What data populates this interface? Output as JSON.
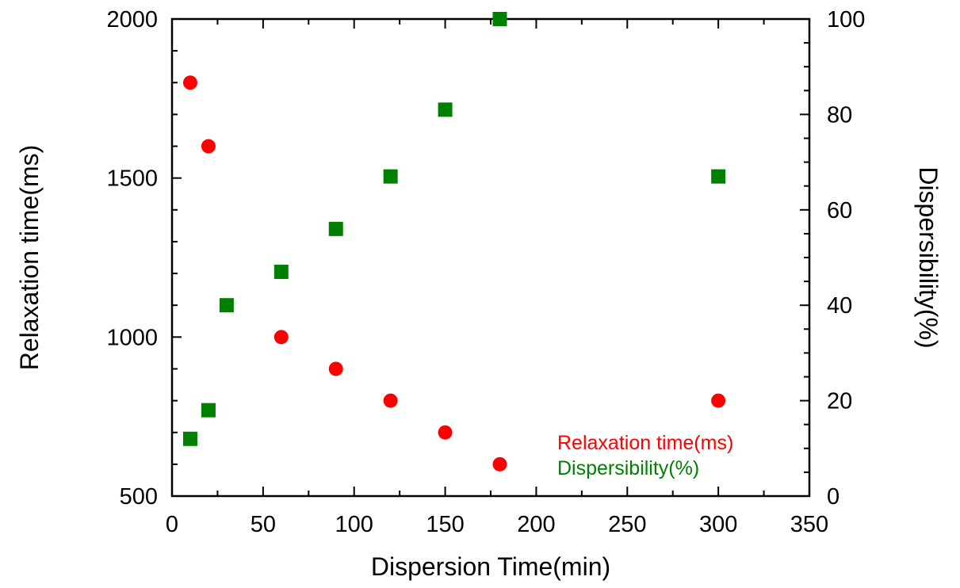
{
  "chart_data": {
    "type": "scatter",
    "x_axis": {
      "label": "Dispersion Time(min)",
      "range": [
        0,
        350
      ],
      "ticks": [
        0,
        50,
        100,
        150,
        200,
        250,
        300,
        350
      ],
      "tick_labels": [
        "0",
        "50",
        "100",
        "150",
        "200",
        "250",
        "300",
        "350"
      ]
    },
    "y_axis_left": {
      "label": "Relaxation time(ms)",
      "range": [
        500,
        2000
      ],
      "ticks": [
        500,
        1000,
        1500,
        2000
      ],
      "tick_labels": [
        "500",
        "1000",
        "1500",
        "2000"
      ]
    },
    "y_axis_right": {
      "label": "Dispersibility(%)",
      "range": [
        0,
        100
      ],
      "ticks": [
        0,
        20,
        40,
        60,
        80,
        100
      ],
      "tick_labels": [
        "0",
        "20",
        "40",
        "60",
        "80",
        "100"
      ]
    },
    "series": [
      {
        "name": "Relaxation time(ms)",
        "axis": "left",
        "marker": "circle",
        "color": "#ff0000",
        "x": [
          10,
          20,
          60,
          90,
          120,
          150,
          180,
          300
        ],
        "y": [
          1800,
          1600,
          1000,
          900,
          800,
          700,
          600,
          800
        ]
      },
      {
        "name": "Dispersibility(%)",
        "axis": "right",
        "marker": "square",
        "color": "#008000",
        "x": [
          10,
          20,
          30,
          60,
          90,
          120,
          150,
          180,
          300
        ],
        "y": [
          12,
          18,
          40,
          47,
          56,
          67,
          81,
          100,
          67
        ]
      }
    ],
    "legend": {
      "placement": "bottom-right",
      "entries": [
        "Relaxation time(ms)",
        "Dispersibility(%)"
      ]
    },
    "grid": false
  }
}
